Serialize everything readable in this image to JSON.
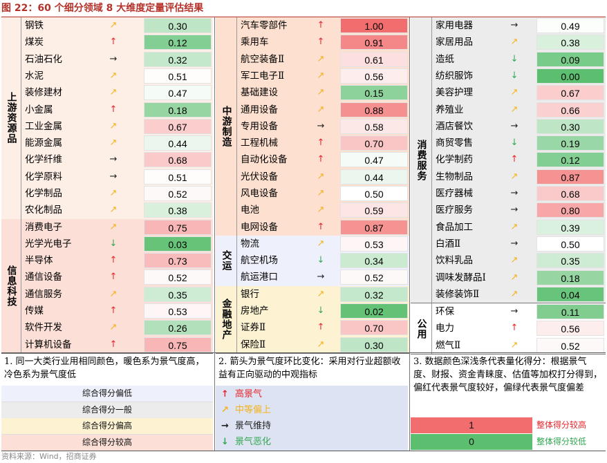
{
  "title": "图 22：60 个细分领域 8 大维度定量评估结果",
  "colors": {
    "upstream": "#fdeee6",
    "manufacturing": "#fde0cf",
    "transport": "#eef1fb",
    "finance": "#fdf3d3",
    "info_tech": "#fcdfd6",
    "consumer": "#ececec",
    "utilities": "#ffffff",
    "arrow_up": "#e8262b",
    "arrow_mid": "#f2b31a",
    "arrow_flat": "#222222",
    "arrow_down": "#33a852",
    "score_high": "#f26d6d",
    "score_low": "#5cbf6f"
  },
  "columns": [
    {
      "groups": [
        {
          "id": "upstream",
          "label": "上游资源品",
          "rows": [
            {
              "name": "钢铁",
              "trend": "mid",
              "score": "0.30",
              "v": 0.3
            },
            {
              "name": "煤炭",
              "trend": "up",
              "score": "0.12",
              "v": 0.12
            },
            {
              "name": "石油石化",
              "trend": "flat",
              "score": "0.32",
              "v": 0.32
            },
            {
              "name": "水泥",
              "trend": "mid",
              "score": "0.51",
              "v": 0.51
            },
            {
              "name": "装修建材",
              "trend": "mid",
              "score": "0.47",
              "v": 0.47
            },
            {
              "name": "小金属",
              "trend": "up",
              "score": "0.18",
              "v": 0.18
            },
            {
              "name": "工业金属",
              "trend": "mid",
              "score": "0.67",
              "v": 0.67
            },
            {
              "name": "能源金属",
              "trend": "mid",
              "score": "0.44",
              "v": 0.44
            },
            {
              "name": "化学纤维",
              "trend": "flat",
              "score": "0.68",
              "v": 0.68
            },
            {
              "name": "化学原料",
              "trend": "flat",
              "score": "0.51",
              "v": 0.51
            },
            {
              "name": "化学制品",
              "trend": "mid",
              "score": "0.52",
              "v": 0.52
            },
            {
              "name": "农化制品",
              "trend": "mid",
              "score": "0.38",
              "v": 0.38
            }
          ]
        },
        {
          "id": "info_tech",
          "label": "信息科技",
          "rows": [
            {
              "name": "消费电子",
              "trend": "mid",
              "score": "0.75",
              "v": 0.75
            },
            {
              "name": "光学光电子",
              "trend": "down",
              "score": "0.03",
              "v": 0.03
            },
            {
              "name": "半导体",
              "trend": "up",
              "score": "0.73",
              "v": 0.73
            },
            {
              "name": "通信设备",
              "trend": "up",
              "score": "0.52",
              "v": 0.52
            },
            {
              "name": "通信服务",
              "trend": "mid",
              "score": "0.35",
              "v": 0.35
            },
            {
              "name": "传媒",
              "trend": "up",
              "score": "0.53",
              "v": 0.53
            },
            {
              "name": "软件开发",
              "trend": "mid",
              "score": "0.26",
              "v": 0.26
            },
            {
              "name": "计算机设备",
              "trend": "up",
              "score": "0.75",
              "v": 0.75
            }
          ]
        }
      ]
    },
    {
      "groups": [
        {
          "id": "manufacturing",
          "label": "中游制造",
          "rows": [
            {
              "name": "汽车零部件",
              "trend": "up",
              "score": "1.00",
              "v": 1.0
            },
            {
              "name": "乘用车",
              "trend": "up",
              "score": "0.91",
              "v": 0.91
            },
            {
              "name": "航空装备Ⅱ",
              "trend": "mid",
              "score": "0.61",
              "v": 0.61
            },
            {
              "name": "军工电子Ⅱ",
              "trend": "mid",
              "score": "0.56",
              "v": 0.56
            },
            {
              "name": "基础建设",
              "trend": "mid",
              "score": "0.15",
              "v": 0.15
            },
            {
              "name": "通用设备",
              "trend": "mid",
              "score": "0.88",
              "v": 0.88
            },
            {
              "name": "专用设备",
              "trend": "flat",
              "score": "0.58",
              "v": 0.58
            },
            {
              "name": "工程机械",
              "trend": "up",
              "score": "0.70",
              "v": 0.7
            },
            {
              "name": "自动化设备",
              "trend": "up",
              "score": "0.47",
              "v": 0.47
            },
            {
              "name": "光伏设备",
              "trend": "mid",
              "score": "0.44",
              "v": 0.44
            },
            {
              "name": "风电设备",
              "trend": "mid",
              "score": "0.50",
              "v": 0.5
            },
            {
              "name": "电池",
              "trend": "mid",
              "score": "0.59",
              "v": 0.59
            },
            {
              "name": "电网设备",
              "trend": "up",
              "score": "0.87",
              "v": 0.87
            }
          ]
        },
        {
          "id": "transport",
          "label": "交运",
          "rows": [
            {
              "name": "物流",
              "trend": "mid",
              "score": "0.53",
              "v": 0.53
            },
            {
              "name": "航空机场",
              "trend": "down",
              "score": "0.34",
              "v": 0.34
            },
            {
              "name": "航运港口",
              "trend": "flat",
              "score": "0.52",
              "v": 0.52
            }
          ]
        },
        {
          "id": "finance",
          "label": "金融地产",
          "rows": [
            {
              "name": "银行",
              "trend": "mid",
              "score": "0.32",
              "v": 0.32
            },
            {
              "name": "房地产",
              "trend": "down",
              "score": "0.02",
              "v": 0.02
            },
            {
              "name": "证券Ⅱ",
              "trend": "up",
              "score": "0.70",
              "v": 0.7
            },
            {
              "name": "保险Ⅱ",
              "trend": "mid",
              "score": "0.30",
              "v": 0.3
            }
          ]
        }
      ]
    },
    {
      "groups": [
        {
          "id": "consumer",
          "label": "消费服务",
          "rows": [
            {
              "name": "家用电器",
              "trend": "flat",
              "score": "0.49",
              "v": 0.49
            },
            {
              "name": "家居用品",
              "trend": "mid",
              "score": "0.38",
              "v": 0.38
            },
            {
              "name": "造纸",
              "trend": "down",
              "score": "0.09",
              "v": 0.09
            },
            {
              "name": "纺织服饰",
              "trend": "down",
              "score": "0.00",
              "v": 0.0
            },
            {
              "name": "美容护理",
              "trend": "mid",
              "score": "0.67",
              "v": 0.67
            },
            {
              "name": "养殖业",
              "trend": "mid",
              "score": "0.66",
              "v": 0.66
            },
            {
              "name": "酒店餐饮",
              "trend": "flat",
              "score": "0.30",
              "v": 0.3
            },
            {
              "name": "商贸零售",
              "trend": "down",
              "score": "0.19",
              "v": 0.19
            },
            {
              "name": "化学制药",
              "trend": "up",
              "score": "0.12",
              "v": 0.12
            },
            {
              "name": "生物制品",
              "trend": "mid",
              "score": "0.87",
              "v": 0.87
            },
            {
              "name": "医疗器械",
              "trend": "flat",
              "score": "0.68",
              "v": 0.68
            },
            {
              "name": "医疗服务",
              "trend": "flat",
              "score": "0.80",
              "v": 0.8
            },
            {
              "name": "食品加工",
              "trend": "mid",
              "score": "0.39",
              "v": 0.39
            },
            {
              "name": "白酒Ⅱ",
              "trend": "flat",
              "score": "0.50",
              "v": 0.5
            },
            {
              "name": "饮料乳品",
              "trend": "mid",
              "score": "0.35",
              "v": 0.35
            },
            {
              "name": "调味发酵品Ⅰ",
              "trend": "mid",
              "score": "0.18",
              "v": 0.18
            },
            {
              "name": "装修装饰Ⅱ",
              "trend": "mid",
              "score": "0.04",
              "v": 0.04
            }
          ]
        },
        {
          "id": "utilities",
          "label": "公用",
          "rows": [
            {
              "name": "环保",
              "trend": "flat",
              "score": "0.11",
              "v": 0.11
            },
            {
              "name": "电力",
              "trend": "up",
              "score": "0.56",
              "v": 0.56
            },
            {
              "name": "燃气Ⅱ",
              "trend": "mid",
              "score": "0.52",
              "v": 0.52
            }
          ]
        }
      ]
    }
  ],
  "notes": {
    "note1": "1. 同一大类行业用相同颜色，暖色系为景气度高，冷色系为景气度低",
    "note2": "2. 箭头为景气度环比变化：采用对行业超额收益有正向驱动的中观指标",
    "note3": "3. 数据颜色深浅条代表量化得分：根据景气度、财报、资金青睐度、估值等加权打分得到，偏红代表景气度较好，偏绿代表景气度偏差"
  },
  "legend_colors": [
    {
      "label": "综合得分偏低",
      "color": "#eef1fb"
    },
    {
      "label": "综合得分一般",
      "color": "#ececec"
    },
    {
      "label": "综合得分偏高",
      "color": "#fdf3d3"
    },
    {
      "label": "综合得分较高",
      "color": "#fcdfd6"
    }
  ],
  "legend_arrows": [
    {
      "glyph": "↑",
      "label": "高景气",
      "color": "#e8262b"
    },
    {
      "glyph": "↗",
      "label": "中等偏上",
      "color": "#f2b31a"
    },
    {
      "glyph": "→",
      "label": "景气维持",
      "color": "#222222"
    },
    {
      "glyph": "↓",
      "label": "景气恶化",
      "color": "#33a852"
    }
  ],
  "legend_scores": [
    {
      "value": "1",
      "label": "整体得分较高",
      "color": "#f26d6d",
      "label_color": "#e8262b"
    },
    {
      "value": "0",
      "label": "整体得分较低",
      "color": "#5cbf6f",
      "label_color": "#33a852"
    }
  ],
  "source": "资料来源：Wind，招商证券"
}
